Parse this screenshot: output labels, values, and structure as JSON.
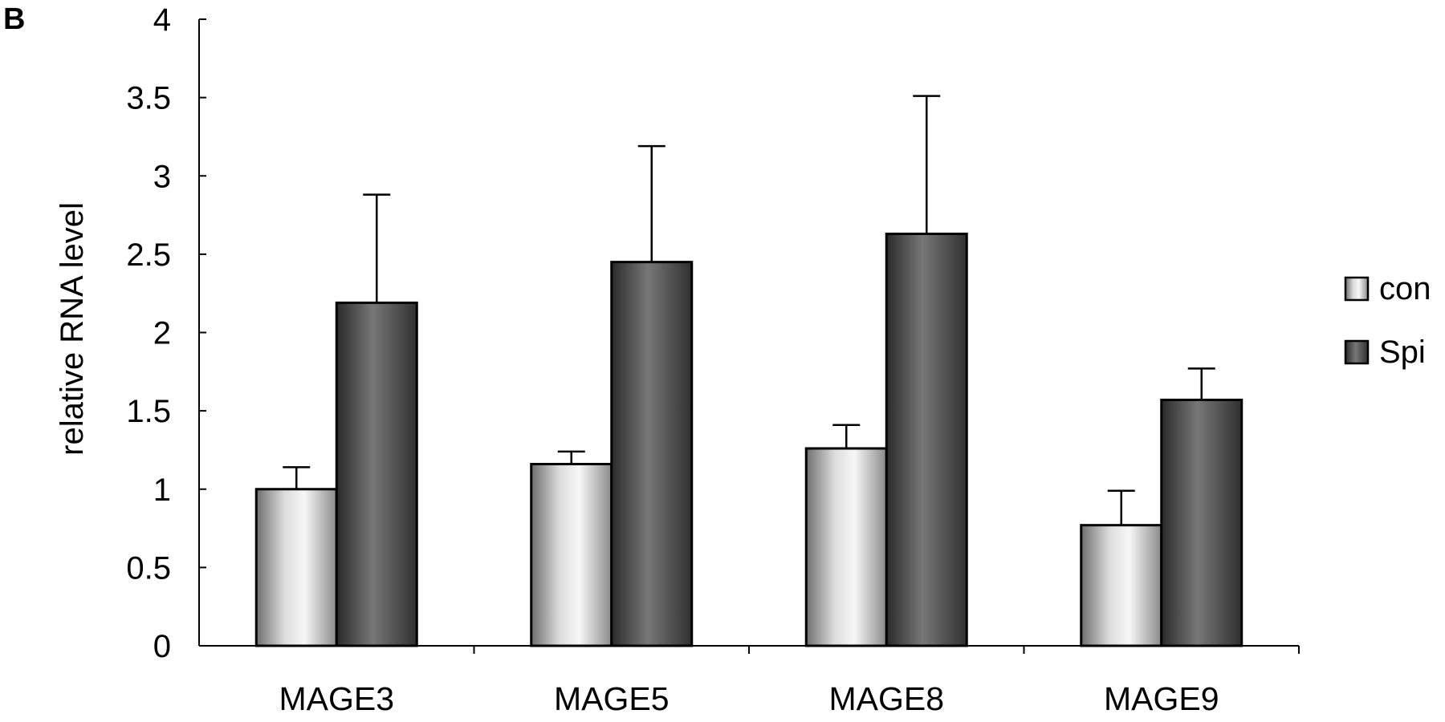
{
  "panel_label": "B",
  "colors": {
    "con": "#e4e4e4",
    "Spi": "#505050",
    "axis": "#000000"
  },
  "chart_data": {
    "type": "bar",
    "title": "",
    "xlabel": "",
    "ylabel": "relative RNA level",
    "ylim": [
      0,
      4
    ],
    "yticks": [
      "0",
      "0.5",
      "1",
      "1.5",
      "2",
      "2.5",
      "3",
      "3.5",
      "4"
    ],
    "categories": [
      "MAGE3",
      "MAGE5",
      "MAGE8",
      "MAGE9"
    ],
    "series": [
      {
        "name": "con",
        "values": [
          1.0,
          1.16,
          1.26,
          0.77
        ],
        "errors": [
          0.14,
          0.08,
          0.15,
          0.22
        ]
      },
      {
        "name": "Spi",
        "values": [
          2.19,
          2.45,
          2.63,
          1.57
        ],
        "errors": [
          0.69,
          0.74,
          0.88,
          0.2
        ]
      }
    ],
    "legend": "right",
    "grid": false,
    "error_bars": "upper"
  }
}
